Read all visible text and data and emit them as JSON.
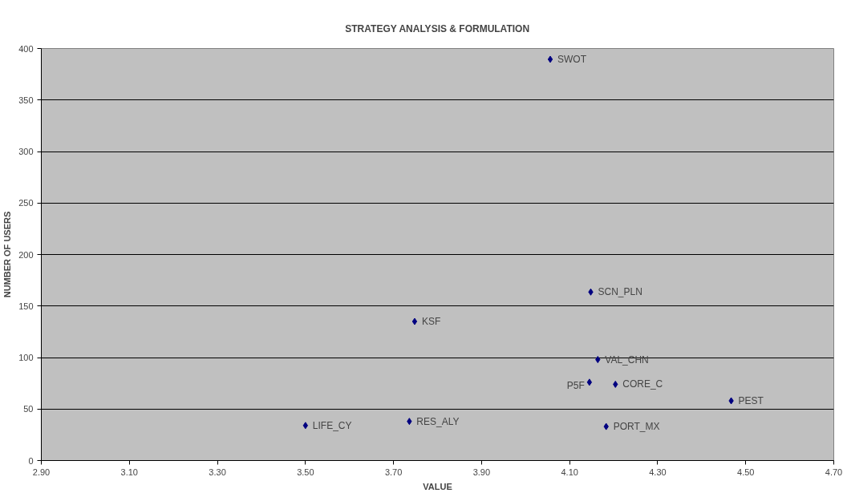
{
  "chart_data": {
    "type": "scatter",
    "title": "STRATEGY ANALYSIS & FORMULATION",
    "xlabel": "VALUE",
    "ylabel": "NUMBER OF USERS",
    "x": [
      4.056,
      4.148,
      3.748,
      4.164,
      4.145,
      4.204,
      4.467,
      3.5,
      3.736,
      4.183
    ],
    "series": [
      {
        "color": "#000080",
        "values": [
          389.5,
          163.6,
          135,
          98,
          76,
          74,
          58,
          34,
          38,
          33
        ]
      }
    ],
    "annotations": [
      {
        "text": "SWOT",
        "x": 4.056,
        "y": 389.5
      },
      {
        "text": "SCN_PLN",
        "x": 4.148,
        "y": 163.6
      },
      {
        "text": "KSF",
        "x": 3.748,
        "y": 135
      },
      {
        "text": "VAL_CHN",
        "x": 4.164,
        "y": 98
      },
      {
        "text": "P5F",
        "x": 4.145,
        "y": 76
      },
      {
        "text": "CORE_C",
        "x": 4.204,
        "y": 74
      },
      {
        "text": "PEST",
        "x": 4.467,
        "y": 58
      },
      {
        "text": "LIFE_CY",
        "x": 3.5,
        "y": 34
      },
      {
        "text": "RES_ALY",
        "x": 3.736,
        "y": 38
      },
      {
        "text": "PORT_MX",
        "x": 4.183,
        "y": 33
      }
    ],
    "xlim": [
      2.9,
      4.7
    ],
    "xticks": [
      {
        "value": 2.9,
        "label": "2.90"
      },
      {
        "value": 3.1,
        "label": "3.10"
      },
      {
        "value": 3.3,
        "label": "3.30"
      },
      {
        "value": 3.5,
        "label": "3.50"
      },
      {
        "value": 3.7,
        "label": "3.70"
      },
      {
        "value": 3.9,
        "label": "3.90"
      },
      {
        "value": 4.1,
        "label": "4.10"
      },
      {
        "value": 4.3,
        "label": "4.30"
      },
      {
        "value": 4.5,
        "label": "4.50"
      },
      {
        "value": 4.7,
        "label": "4.70"
      }
    ],
    "ylim": [
      0,
      400
    ],
    "yticks": [
      0,
      50,
      100,
      150,
      200,
      250,
      300,
      350,
      400
    ],
    "grid": "y",
    "marker": "diamond"
  }
}
